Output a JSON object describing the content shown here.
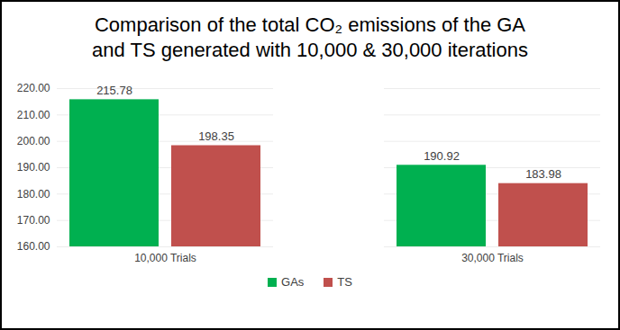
{
  "chart_data": {
    "type": "bar",
    "title": "Comparison of the total CO₂ emissions of the GA\nand TS generated with 10,000 & 30,000 iterations",
    "categories": [
      "10,000 Trials",
      "30,000 Trials"
    ],
    "series": [
      {
        "name": "GAs",
        "color": "#00b050",
        "values": [
          215.78,
          190.92
        ]
      },
      {
        "name": "TS",
        "color": "#c0504d",
        "values": [
          198.35,
          183.98
        ]
      }
    ],
    "ylim": [
      160,
      220
    ],
    "yticks": [
      {
        "value": 160,
        "label": "160.00"
      },
      {
        "value": 170,
        "label": "170.00"
      },
      {
        "value": 180,
        "label": "180.00"
      },
      {
        "value": 190,
        "label": "190.00"
      },
      {
        "value": 200,
        "label": "200.00"
      },
      {
        "value": 210,
        "label": "210.00"
      },
      {
        "value": 220,
        "label": "220.00"
      }
    ],
    "grid": true,
    "data_labels": true,
    "legend": "bottom"
  }
}
